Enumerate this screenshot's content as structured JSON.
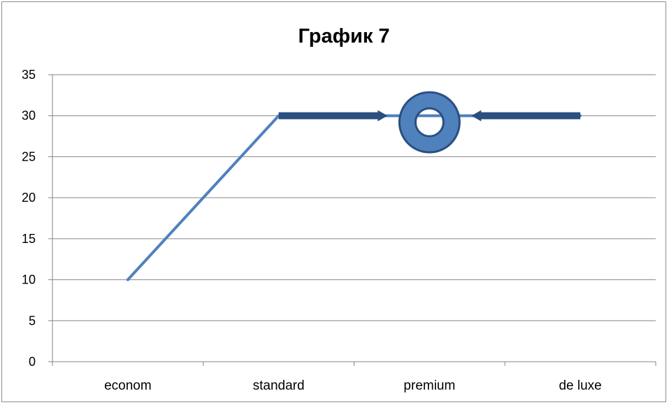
{
  "chart_data": {
    "type": "line",
    "title": "График 7",
    "categories": [
      "econom",
      "standard",
      "premium",
      "de luxe"
    ],
    "series": [
      {
        "values": [
          10,
          30,
          30,
          30
        ]
      }
    ],
    "ylim": [
      0,
      35
    ],
    "yticks": [
      0,
      5,
      10,
      15,
      20,
      25,
      30,
      35
    ],
    "grid": true,
    "annotations": [
      {
        "kind": "arrow",
        "from": "standard",
        "to": "premium",
        "y": 30,
        "direction": "right"
      },
      {
        "kind": "arrow",
        "from": "de luxe",
        "to": "premium",
        "y": 30,
        "direction": "left"
      },
      {
        "kind": "ring-marker",
        "at": "premium",
        "y": 29.2
      }
    ]
  },
  "colors": {
    "line": "#4f81bd",
    "arrow": "#2a4f80",
    "ring_fill": "#4f81bd",
    "ring_stroke": "#2a4f80",
    "grid": "#868686"
  }
}
